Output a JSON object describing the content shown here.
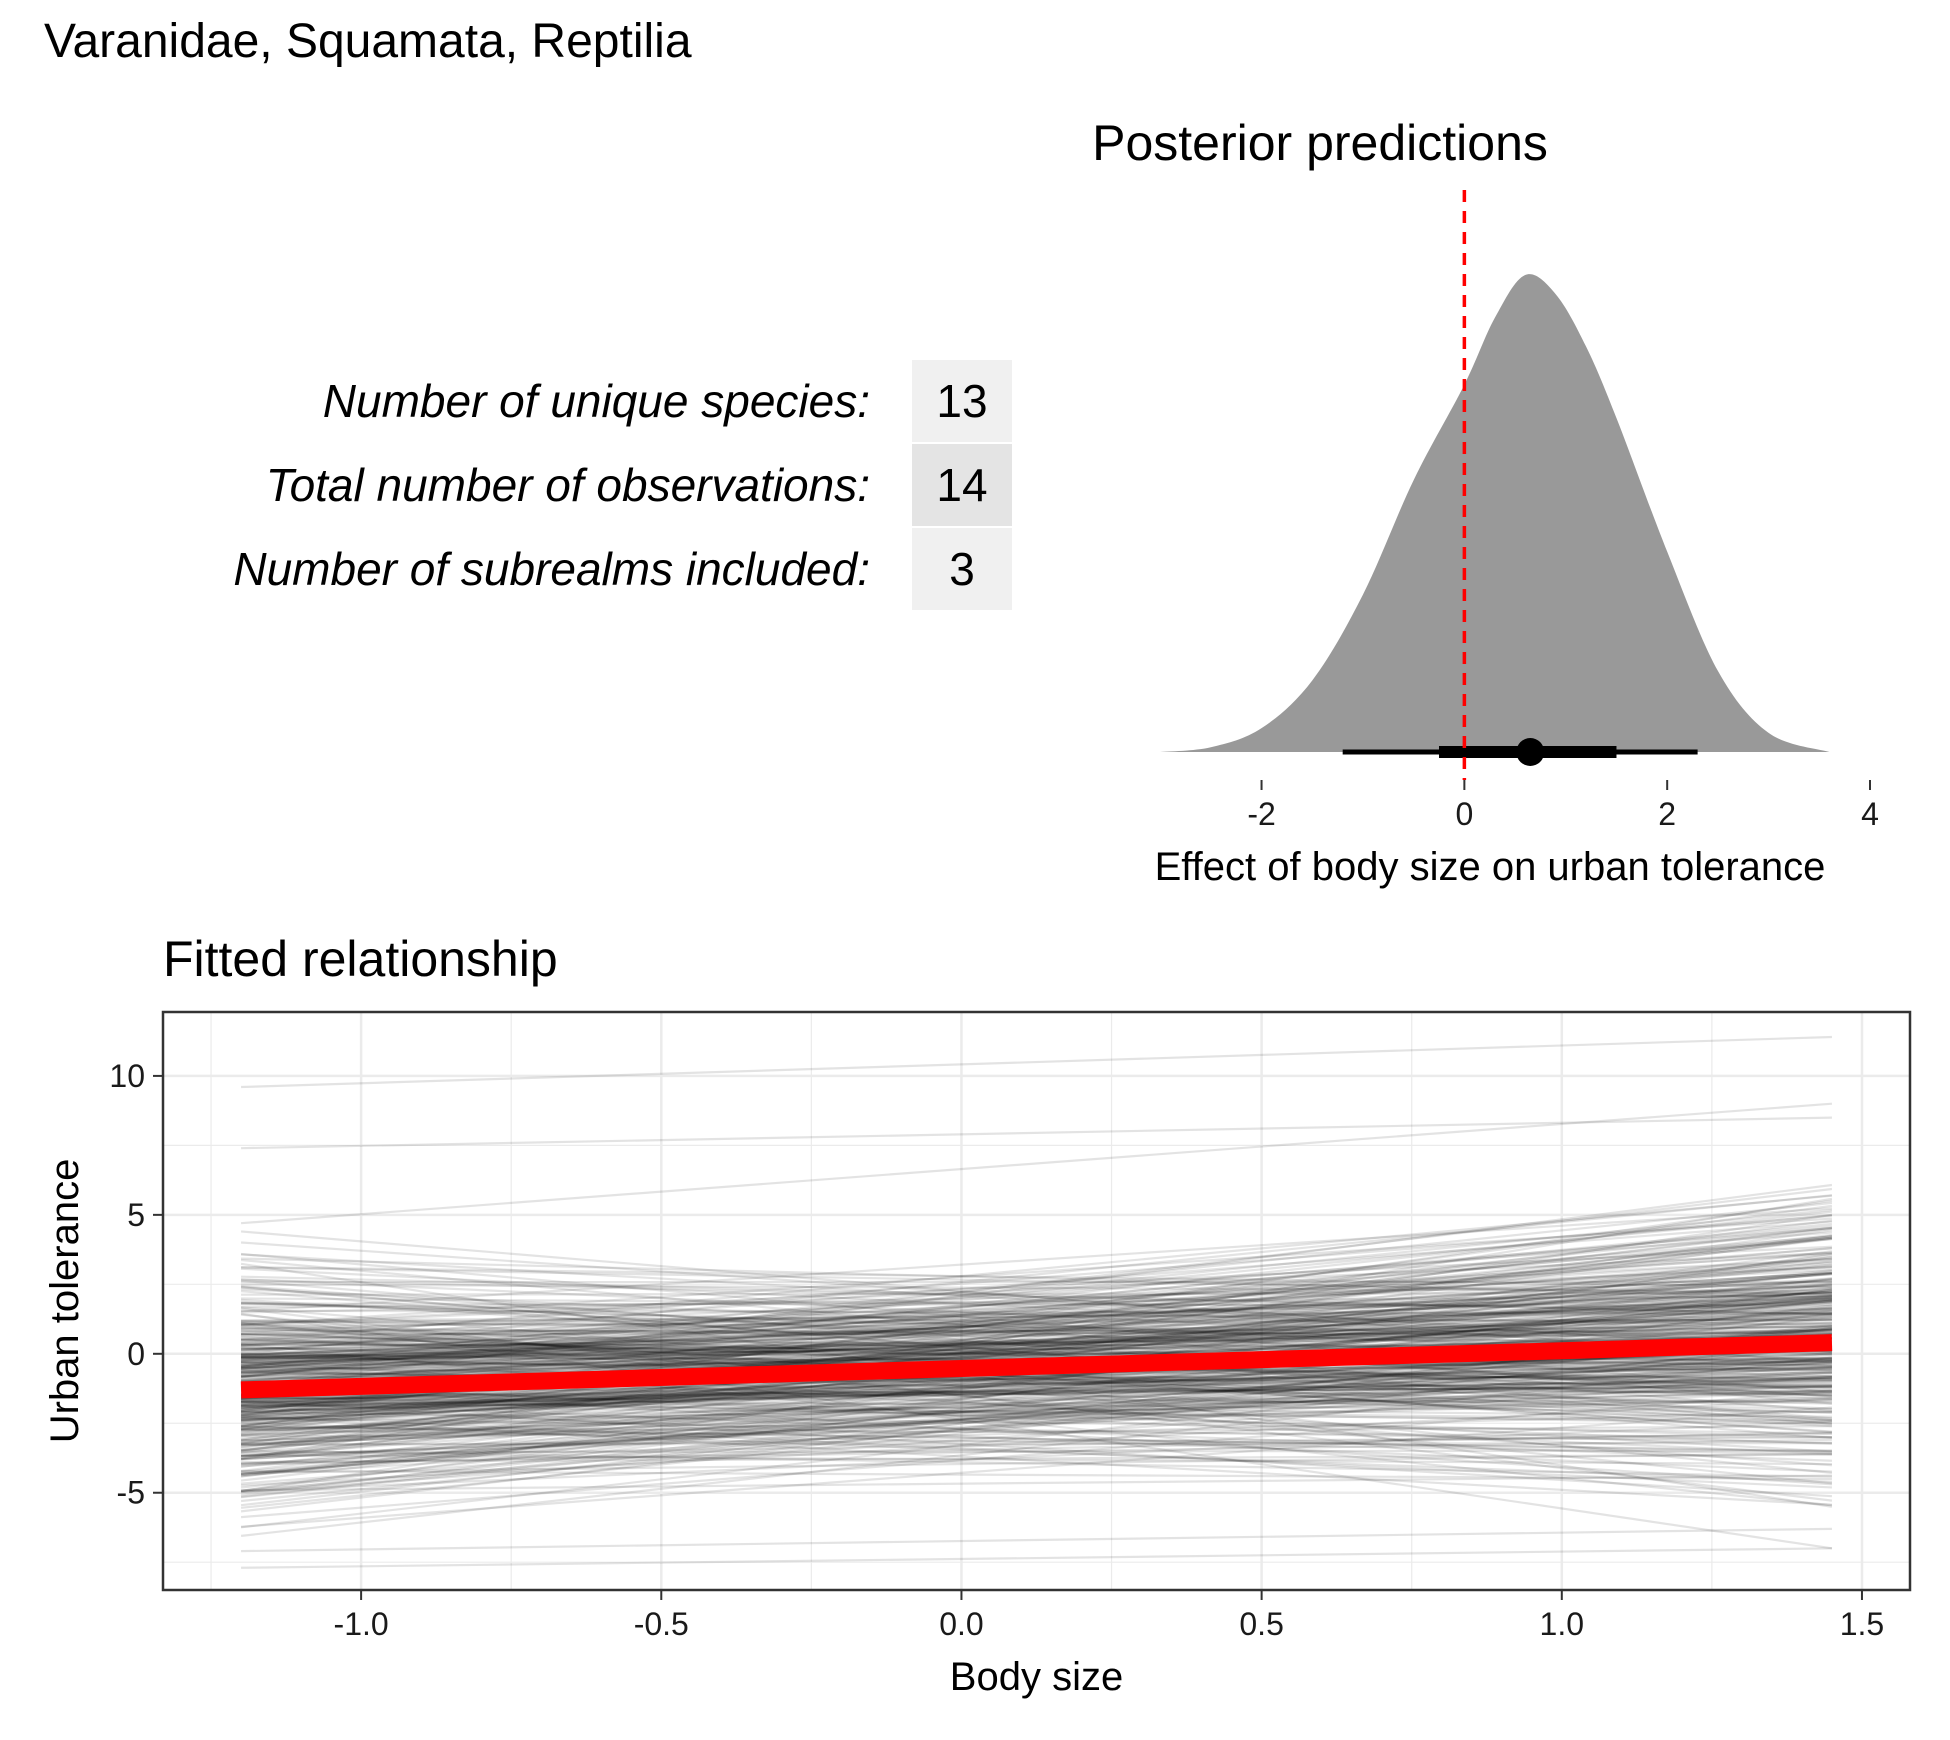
{
  "page": {
    "title": "Varanidae, Squamata, Reptilia"
  },
  "stats": [
    {
      "label": "Number of unique species:",
      "value": "13",
      "shade": "#f0f0f0"
    },
    {
      "label": "Total number of observations:",
      "value": "14",
      "shade": "#e4e4e4"
    },
    {
      "label": "Number of subrealms included:",
      "value": "3",
      "shade": "#f0f0f0"
    }
  ],
  "colors": {
    "density_fill": "#999999",
    "reference_line": "#ff0000",
    "fitted_line": "#ff0000",
    "posterior_draws": "#000000",
    "panel_border": "#333333",
    "grid": "#ebebeb"
  },
  "chart_data": [
    {
      "type": "area",
      "title": "Posterior predictions",
      "xlabel": "Effect of body size on urban tolerance",
      "ylabel": "",
      "xlim": [
        -3.1,
        4.0
      ],
      "xticks": [
        -2,
        0,
        2,
        4
      ],
      "xtick_labels": [
        "-2",
        "0",
        "2",
        "4"
      ],
      "grid": false,
      "reference_line_x": 0,
      "density": {
        "x": [
          -3.0,
          -2.5,
          -2.0,
          -1.5,
          -1.0,
          -0.5,
          0.0,
          0.3,
          0.6,
          0.9,
          1.2,
          1.5,
          2.0,
          2.5,
          3.0,
          3.6
        ],
        "y": [
          0.0,
          0.01,
          0.05,
          0.15,
          0.33,
          0.57,
          0.77,
          0.91,
          1.0,
          0.96,
          0.85,
          0.7,
          0.42,
          0.17,
          0.04,
          0.0
        ]
      },
      "interval": {
        "median": 0.65,
        "inner": [
          -0.25,
          1.5
        ],
        "outer": [
          -1.2,
          2.3
        ]
      }
    },
    {
      "type": "line",
      "title": "Fitted relationship",
      "xlabel": "Body size",
      "ylabel": "Urban tolerance",
      "xlim": [
        -1.33,
        1.58
      ],
      "ylim": [
        -8.5,
        12.3
      ],
      "xticks": [
        -1.0,
        -0.5,
        0.0,
        0.5,
        1.0,
        1.5
      ],
      "xtick_labels": [
        "-1.0",
        "-0.5",
        "0.0",
        "0.5",
        "1.0",
        "1.5"
      ],
      "yticks": [
        -5,
        0,
        5,
        10
      ],
      "ytick_labels": [
        "-5",
        "0",
        "5",
        "10"
      ],
      "grid": true,
      "x_range": [
        -1.2,
        1.45
      ],
      "fitted_line": {
        "x": [
          -1.2,
          1.45
        ],
        "y": [
          -1.3,
          0.4
        ]
      },
      "posterior_draws": {
        "count": 400,
        "intercept_at_left_range": [
          -7.7,
          9.6
        ],
        "value_at_right_range": [
          -7.0,
          11.4
        ]
      }
    }
  ]
}
